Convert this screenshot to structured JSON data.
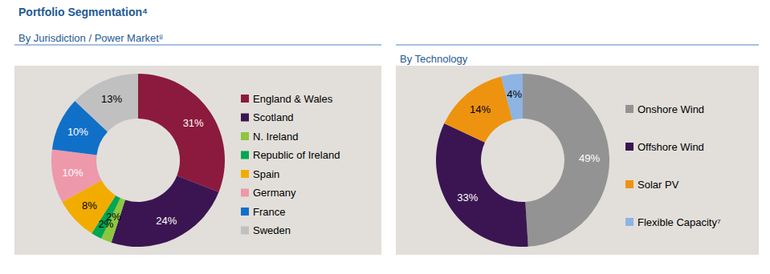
{
  "title": "Portfolio Segmentation⁴",
  "chart_data": [
    {
      "type": "pie",
      "title": "By Jurisdiction / Power Market⁸",
      "categories": [
        "England & Wales",
        "Scotland",
        "N. Ireland",
        "Republic of Ireland",
        "Spain",
        "Germany",
        "France",
        "Sweden"
      ],
      "values": [
        31,
        24,
        2,
        2,
        8,
        10,
        10,
        13
      ],
      "value_labels": [
        "31%",
        "24%",
        "2%",
        "2%",
        "8%",
        "10%",
        "10%",
        "13%"
      ],
      "colors": [
        "#8c1a3e",
        "#3b1552",
        "#8dc63f",
        "#00a651",
        "#f2ac00",
        "#ee98ab",
        "#1070c8",
        "#c0c0c0"
      ],
      "data_labels": true,
      "legend": "right"
    },
    {
      "type": "pie",
      "title": "By Technology",
      "categories": [
        "Onshore Wind",
        "Offshore Wind",
        "Solar PV",
        "Flexible Capacity⁷"
      ],
      "values": [
        49,
        33,
        14,
        4
      ],
      "value_labels": [
        "49%",
        "33%",
        "14%",
        "4%"
      ],
      "colors": [
        "#939393",
        "#3b1552",
        "#ed9310",
        "#8db4e2"
      ],
      "data_labels": true,
      "legend": "right"
    }
  ]
}
